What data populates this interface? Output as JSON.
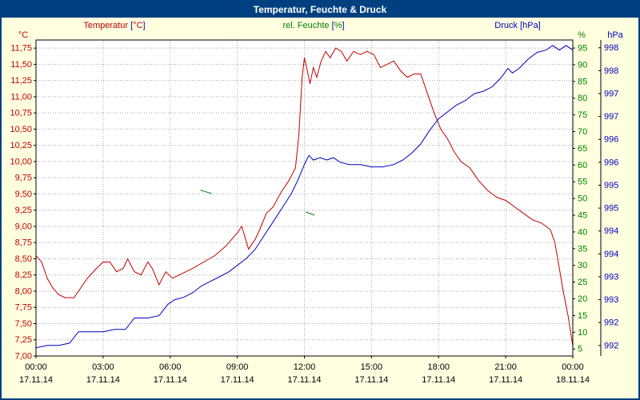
{
  "window": {
    "title": "Temperatur, Feuchte & Druck"
  },
  "colors": {
    "titlebar": "#004080",
    "border": "#004080",
    "background": "#ffffe0",
    "plot_background": "#ffffff",
    "plot_border": "#000000"
  },
  "chart_data": {
    "type": "line",
    "title": "Temperatur, Feuchte & Druck",
    "grid_color": "#a6a6a6",
    "bracket_color": "#0000c0",
    "x_axis": {
      "min": 0,
      "max": 24,
      "tick_hours": [
        0,
        3,
        6,
        9,
        12,
        15,
        18,
        21,
        24
      ],
      "time_labels": [
        "00:00",
        "03:00",
        "06:00",
        "09:00",
        "12:00",
        "15:00",
        "18:00",
        "21:00",
        "00:00"
      ],
      "date_labels": [
        "17.11.14",
        "17.11.14",
        "17.11.14",
        "17.11.14",
        "17.11.14",
        "17.11.14",
        "17.11.14",
        "17.11.14",
        "18.11.14"
      ]
    },
    "axes": {
      "temperature": {
        "name": "Temperatur",
        "unit": "°C",
        "label": "Temperatur [°C]",
        "color": "#c00000",
        "min": 7.0,
        "max": 11.875,
        "tick_values": [
          11.75,
          11.5,
          11.25,
          11.0,
          10.75,
          10.5,
          10.25,
          10.0,
          9.75,
          9.5,
          9.25,
          9.0,
          8.75,
          8.5,
          8.25,
          8.0,
          7.75,
          7.5,
          7.25,
          7.0
        ],
        "tick_labels": [
          "11,75",
          "11,50",
          "11,25",
          "11,00",
          "10,75",
          "10,50",
          "10,25",
          "10,00",
          "9,75",
          "9,50",
          "9,25",
          "9,00",
          "8,75",
          "8,50",
          "8,25",
          "8,00",
          "7,75",
          "7,50",
          "7,25",
          "7,00"
        ]
      },
      "humidity": {
        "name": "rel. Feuchte",
        "unit": "%",
        "label": "rel. Feuchte [%]",
        "color": "#008000",
        "min": 2.9,
        "max": 97.4,
        "tick_values": [
          95,
          90,
          85,
          80,
          75,
          70,
          65,
          60,
          55,
          50,
          45,
          40,
          35,
          30,
          25,
          20,
          15,
          10,
          5
        ],
        "tick_labels": [
          "95",
          "90",
          "85",
          "80",
          "75",
          "70",
          "65",
          "60",
          "55",
          "50",
          "45",
          "40",
          "35",
          "30",
          "25",
          "20",
          "15",
          "10",
          "5"
        ]
      },
      "pressure": {
        "name": "Druck",
        "unit": "hPa",
        "label": "Druck [hPa]",
        "color": "#0000c0",
        "min": 991.77,
        "max": 998.67,
        "tick_values": [
          998.5,
          998.0,
          997.5,
          997.0,
          996.5,
          996.0,
          995.5,
          995.0,
          994.5,
          994.0,
          993.5,
          993.0,
          992.5,
          992.0
        ],
        "tick_labels": [
          "998",
          "998",
          "997",
          "997",
          "996",
          "996",
          "995",
          "995",
          "994",
          "994",
          "993",
          "993",
          "992",
          "992"
        ]
      }
    },
    "series": [
      {
        "name": "Temperatur",
        "axis": "temperature",
        "color": "#c00000",
        "points": [
          [
            0,
            8.55
          ],
          [
            0.25,
            8.45
          ],
          [
            0.5,
            8.2
          ],
          [
            0.75,
            8.05
          ],
          [
            1,
            7.95
          ],
          [
            1.3,
            7.9
          ],
          [
            1.7,
            7.9
          ],
          [
            2,
            8.05
          ],
          [
            2.3,
            8.2
          ],
          [
            2.7,
            8.35
          ],
          [
            3,
            8.45
          ],
          [
            3.3,
            8.45
          ],
          [
            3.6,
            8.3
          ],
          [
            3.9,
            8.35
          ],
          [
            4.1,
            8.5
          ],
          [
            4.4,
            8.3
          ],
          [
            4.7,
            8.25
          ],
          [
            5,
            8.45
          ],
          [
            5.2,
            8.35
          ],
          [
            5.5,
            8.1
          ],
          [
            5.8,
            8.3
          ],
          [
            6.1,
            8.2
          ],
          [
            6.4,
            8.25
          ],
          [
            6.7,
            8.3
          ],
          [
            7,
            8.35
          ],
          [
            7.5,
            8.45
          ],
          [
            8,
            8.55
          ],
          [
            8.5,
            8.7
          ],
          [
            9,
            8.9
          ],
          [
            9.2,
            9.0
          ],
          [
            9.5,
            8.65
          ],
          [
            9.8,
            8.8
          ],
          [
            10,
            8.95
          ],
          [
            10.3,
            9.2
          ],
          [
            10.6,
            9.3
          ],
          [
            11,
            9.55
          ],
          [
            11.3,
            9.7
          ],
          [
            11.6,
            9.9
          ],
          [
            11.75,
            10.4
          ],
          [
            11.9,
            11.3
          ],
          [
            12,
            11.6
          ],
          [
            12.1,
            11.45
          ],
          [
            12.25,
            11.2
          ],
          [
            12.4,
            11.45
          ],
          [
            12.55,
            11.3
          ],
          [
            12.75,
            11.55
          ],
          [
            12.95,
            11.7
          ],
          [
            13.15,
            11.6
          ],
          [
            13.4,
            11.75
          ],
          [
            13.65,
            11.7
          ],
          [
            13.9,
            11.55
          ],
          [
            14.2,
            11.7
          ],
          [
            14.5,
            11.65
          ],
          [
            14.8,
            11.7
          ],
          [
            15.1,
            11.65
          ],
          [
            15.4,
            11.45
          ],
          [
            15.7,
            11.5
          ],
          [
            16,
            11.55
          ],
          [
            16.3,
            11.4
          ],
          [
            16.6,
            11.3
          ],
          [
            16.9,
            11.35
          ],
          [
            17.2,
            11.35
          ],
          [
            17.5,
            11.05
          ],
          [
            17.8,
            10.75
          ],
          [
            18.1,
            10.5
          ],
          [
            18.4,
            10.35
          ],
          [
            18.7,
            10.15
          ],
          [
            19,
            10.0
          ],
          [
            19.4,
            9.9
          ],
          [
            19.8,
            9.7
          ],
          [
            20.2,
            9.55
          ],
          [
            20.6,
            9.45
          ],
          [
            21,
            9.4
          ],
          [
            21.4,
            9.3
          ],
          [
            21.8,
            9.2
          ],
          [
            22.2,
            9.1
          ],
          [
            22.6,
            9.05
          ],
          [
            23,
            8.95
          ],
          [
            23.2,
            8.75
          ],
          [
            23.4,
            8.35
          ],
          [
            23.6,
            7.95
          ],
          [
            23.8,
            7.6
          ],
          [
            24,
            7.15
          ]
        ]
      },
      {
        "name": "rel. Feuchte",
        "axis": "humidity",
        "color": "#008000",
        "segments": [
          [
            [
              7.35,
              52.5
            ],
            [
              7.6,
              52.0
            ],
            [
              7.85,
              51.5
            ]
          ],
          [
            [
              12.05,
              46.0
            ],
            [
              12.25,
              45.5
            ],
            [
              12.45,
              45.0
            ]
          ]
        ]
      },
      {
        "name": "Druck",
        "axis": "pressure",
        "color": "#0000c0",
        "points": [
          [
            0,
            991.95
          ],
          [
            0.5,
            992.0
          ],
          [
            1,
            992.0
          ],
          [
            1.5,
            992.05
          ],
          [
            1.9,
            992.3
          ],
          [
            2.5,
            992.3
          ],
          [
            3,
            992.3
          ],
          [
            3.5,
            992.35
          ],
          [
            4,
            992.35
          ],
          [
            4.4,
            992.6
          ],
          [
            5,
            992.6
          ],
          [
            5.5,
            992.65
          ],
          [
            5.9,
            992.9
          ],
          [
            6.2,
            993.0
          ],
          [
            6.6,
            993.05
          ],
          [
            7,
            993.15
          ],
          [
            7.4,
            993.3
          ],
          [
            7.8,
            993.4
          ],
          [
            8.2,
            993.5
          ],
          [
            8.6,
            993.6
          ],
          [
            9,
            993.75
          ],
          [
            9.4,
            993.9
          ],
          [
            9.8,
            994.1
          ],
          [
            10.2,
            994.4
          ],
          [
            10.6,
            994.7
          ],
          [
            11,
            995.0
          ],
          [
            11.4,
            995.3
          ],
          [
            11.7,
            995.6
          ],
          [
            12,
            995.95
          ],
          [
            12.2,
            996.15
          ],
          [
            12.4,
            996.05
          ],
          [
            12.7,
            996.1
          ],
          [
            13,
            996.05
          ],
          [
            13.3,
            996.1
          ],
          [
            13.6,
            996.0
          ],
          [
            14,
            995.95
          ],
          [
            14.5,
            995.95
          ],
          [
            15,
            995.9
          ],
          [
            15.5,
            995.9
          ],
          [
            16,
            995.95
          ],
          [
            16.4,
            996.05
          ],
          [
            16.8,
            996.2
          ],
          [
            17.2,
            996.4
          ],
          [
            17.6,
            996.7
          ],
          [
            18,
            996.95
          ],
          [
            18.4,
            997.1
          ],
          [
            18.8,
            997.25
          ],
          [
            19.2,
            997.35
          ],
          [
            19.6,
            997.5
          ],
          [
            20,
            997.55
          ],
          [
            20.4,
            997.65
          ],
          [
            20.8,
            997.85
          ],
          [
            21.1,
            998.05
          ],
          [
            21.3,
            997.95
          ],
          [
            21.6,
            998.05
          ],
          [
            22,
            998.25
          ],
          [
            22.4,
            998.4
          ],
          [
            22.8,
            998.45
          ],
          [
            23.1,
            998.55
          ],
          [
            23.4,
            998.45
          ],
          [
            23.7,
            998.55
          ],
          [
            24,
            998.45
          ]
        ]
      }
    ]
  }
}
